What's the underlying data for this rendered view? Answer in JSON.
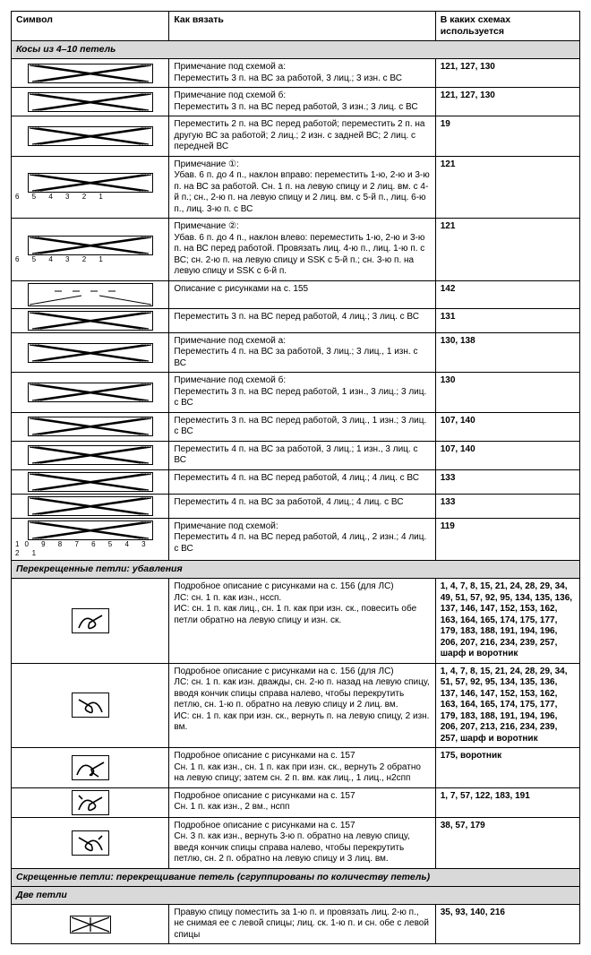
{
  "headers": {
    "col1": "Символ",
    "col2": "Как вязать",
    "col3": "В каких схемах используется"
  },
  "sections": [
    {
      "title": "Косы из 4–10 петель",
      "rows": [
        {
          "desc": "Примечание под схемой а:\nПереместить 3 п. на ВС за работой, 3 лиц.; 3 изн. с ВС",
          "pages": "121, 127, 130"
        },
        {
          "desc": "Примечание под схемой б:\nПереместить 3 п. на ВС перед работой, 3 изн.; 3 лиц. с ВС",
          "pages": "121, 127, 130"
        },
        {
          "desc": "Переместить 2 п. на ВС перед работой; переместить 2 п. на другую ВС за работой; 2 лиц.; 2 изн. с задней ВС; 2 лиц. с передней ВС",
          "pages": "19"
        },
        {
          "desc": "Примечание ①:\nУбав. 6 п. до 4 п., наклон вправо: переместить 1-ю, 2-ю и 3-ю п. на ВС за работой. Сн. 1 п. на левую спицу и 2 лиц. вм. с 4-й п.; сн., 2-ю п. на левую спицу и 2 лиц. вм. с 5-й п., лиц. 6-ю п., лиц. 3-ю п. с ВС",
          "pages": "121",
          "nums": "6    5    4    3    2    1"
        },
        {
          "desc": "Примечание ②:\nУбав. 6 п. до 4 п., наклон влево: переместить 1-ю, 2-ю и 3-ю п. на ВС перед работой. Провязать лиц. 4-ю п., лиц. 1-ю п. с ВС; сн. 2-ю п. на левую спицу и SSK с 5-й п.; сн. 3-ю п. на левую спицу и SSK с 6-й п.",
          "pages": "121",
          "nums": "6    5    4    3    2    1"
        },
        {
          "desc": "Описание с рисунками на с. 155",
          "pages": "142"
        },
        {
          "desc": "Переместить 3 п. на ВС перед работой, 4 лиц.; 3 лиц. с ВС",
          "pages": "131"
        },
        {
          "desc": "Примечание под схемой а:\nПереместить 4 п. на ВС за работой, 3 лиц.; 3 лиц., 1 изн. с ВС",
          "pages": "130, 138"
        },
        {
          "desc": "Примечание под схемой б:\nПереместить 3 п. на ВС перед работой, 1 изн., 3 лиц.; 3 лиц. с ВС",
          "pages": "130"
        },
        {
          "desc": "Переместить 3 п. на ВС перед работой, 3 лиц., 1 изн.; 3 лиц. с ВС",
          "pages": "107, 140"
        },
        {
          "desc": "Переместить 4 п. на ВС за работой, 3 лиц.; 1 изн., 3 лиц. с ВС",
          "pages": "107, 140"
        },
        {
          "desc": "Переместить 4 п. на ВС перед работой, 4 лиц.; 4 лиц. с ВС",
          "pages": "133"
        },
        {
          "desc": "Переместить 4 п. на ВС за работой, 4 лиц.; 4 лиц. с ВС",
          "pages": "133"
        },
        {
          "desc": "Примечание под схемой:\nПереместить 4 п. на ВС перед работой, 4 лиц., 2 изн.; 4 лиц. с ВС",
          "pages": "119",
          "nums": "10 9 8 7 6 5 4 3 2 1"
        }
      ]
    },
    {
      "title": "Перекрещенные петли: убавления",
      "rows": [
        {
          "desc": "Подробное описание с рисунками на с. 156 (для ЛС)\nЛС: сн. 1 п. как изн., нссп.\nИС: сн. 1 п. как лиц., сн. 1 п. как при изн. ск., повесить обе петли обратно на левую спицу и изн. ск.",
          "pages": "1, 4, 7, 8, 15, 21, 24, 28, 29, 34, 49, 51, 57, 92, 95, 134, 135, 136, 137, 146, 147, 152, 153, 162, 163, 164, 165, 174, 175, 177, 179, 183, 188, 191, 194, 196, 206, 207, 216, 234, 239, 257, шарф и воротник"
        },
        {
          "desc": "Подробное описание с рисунками на с. 156 (для ЛС)\nЛС: сн. 1 п. как изн. дважды, сн. 2-ю п. назад на левую спицу, вводя кончик спицы справа налево, чтобы перекрутить петлю, сн. 1-ю п. обратно на левую спицу и 2 лиц. вм.\nИС: сн. 1 п. как при изн. ск., вернуть п. на левую спицу, 2 изн. вм.",
          "pages": "1, 4, 7, 8, 15, 21, 24, 28, 29, 34, 51, 57, 92, 95, 134, 135, 136, 137, 146, 147, 152, 153, 162, 163, 164, 165, 174, 175, 177, 179, 183, 188, 191, 194, 196, 206, 207, 213, 216, 234, 239, 257, шарф и воротник"
        },
        {
          "desc": "Подробное описание с рисунками на с. 157\nСн. 1 п. как изн., сн. 1 п. как при изн. ск., вернуть 2 обратно на левую спицу; затем сн. 2 п. вм. как лиц., 1 лиц., н2спп",
          "pages": "175, воротник"
        },
        {
          "desc": "Подробное описание с рисунками на с. 157\nСн. 1 п. как изн., 2 вм., нспп",
          "pages": "1, 7, 57, 122, 183, 191"
        },
        {
          "desc": "Подробное описание с рисунками на с. 157\nСн. 3 п. как изн., вернуть 3-ю п. обратно на левую спицу, введя кончик спицы справа налево, чтобы перекрутить петлю, сн. 2 п. обратно на левую спицу и 3 лиц. вм.",
          "pages": "38, 57, 179"
        }
      ]
    },
    {
      "title": "Скрещенные петли: перекрещивание петель (сгруппированы по количеству петель)",
      "rows": []
    },
    {
      "title": "Две петли",
      "rows": [
        {
          "desc": "Правую спицу поместить за 1-ю п. и провязать лиц. 2-ю п., не снимая ее с левой спицы; лиц. ск. 1-ю п. и сн. обе с левой спицы",
          "pages": "35, 93, 140, 216"
        }
      ]
    }
  ],
  "style": {
    "bg_section": "#d9d9d9",
    "border": "#000000",
    "font_size": 10
  }
}
